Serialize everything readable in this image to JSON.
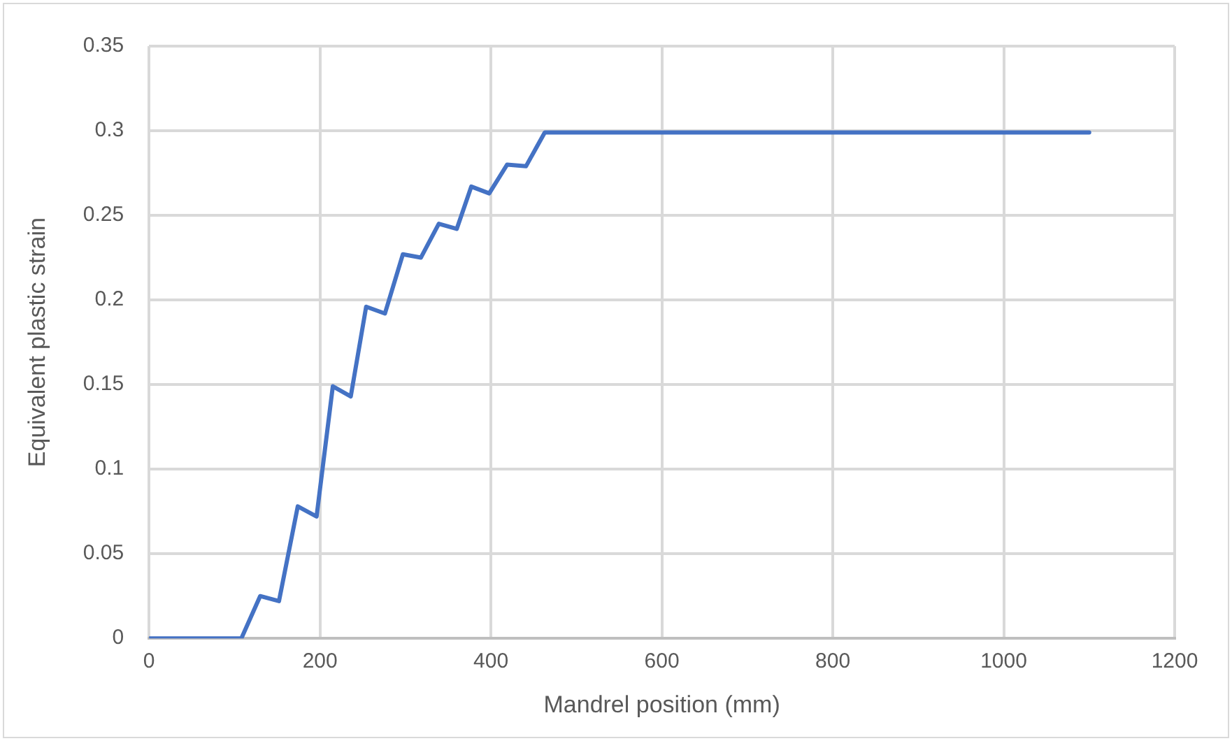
{
  "chart_data": {
    "type": "line",
    "xlabel": "Mandrel position (mm)",
    "ylabel": "Equivalent plastic strain",
    "x": [
      0,
      108,
      130,
      152,
      174,
      196,
      215,
      236,
      254,
      276,
      297,
      318,
      339,
      360,
      377,
      398,
      419,
      441,
      463,
      1100
    ],
    "series": [
      {
        "color": "#4472c4",
        "values": [
          0,
          0,
          0.025,
          0.022,
          0.078,
          0.072,
          0.149,
          0.143,
          0.196,
          0.192,
          0.227,
          0.225,
          0.245,
          0.242,
          0.267,
          0.263,
          0.28,
          0.279,
          0.299,
          0.299
        ]
      }
    ],
    "xlim": [
      0,
      1200
    ],
    "xticks": [
      0,
      200,
      400,
      600,
      800,
      1000,
      1200
    ],
    "ylim": [
      0,
      0.35
    ],
    "yticks": [
      0,
      0.05,
      0.1,
      0.15,
      0.2,
      0.25,
      0.3,
      0.35
    ],
    "grid": true,
    "legend": false,
    "marker": "none",
    "line_style": "solid"
  }
}
